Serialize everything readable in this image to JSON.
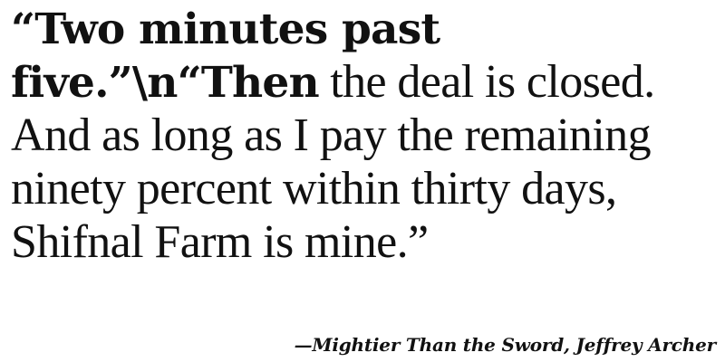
{
  "quote": {
    "bold_text": "“Two minutes past five.”\\n“Then",
    "regular_text": " the deal is closed. And as long as I pay the remaining ninety percent within thirty days, Shifnal Farm is mine.”"
  },
  "attribution": {
    "text": "—Mightier Than the Sword, Jeffrey Archer"
  }
}
